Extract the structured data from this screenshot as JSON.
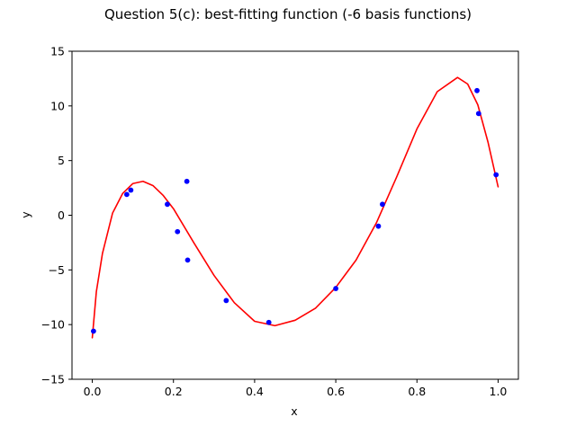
{
  "chart_data": {
    "type": "scatter",
    "title": "Question 5(c): best-fitting function (-6 basis functions)",
    "xlabel": "x",
    "ylabel": "y",
    "xlim": [
      -0.05,
      1.05
    ],
    "ylim": [
      -15,
      15
    ],
    "xticks": [
      "0.0",
      "0.2",
      "0.4",
      "0.6",
      "0.8",
      "1.0"
    ],
    "xtick_values": [
      0.0,
      0.2,
      0.4,
      0.6,
      0.8,
      1.0
    ],
    "yticks": [
      "−15",
      "−10",
      "−5",
      "0",
      "5",
      "10",
      "15"
    ],
    "ytick_values": [
      -15,
      -10,
      -5,
      0,
      5,
      10,
      15
    ],
    "grid": false,
    "legend": "none",
    "points": {
      "color": "#0000ff",
      "x": [
        0.003,
        0.085,
        0.095,
        0.185,
        0.21,
        0.233,
        0.235,
        0.33,
        0.435,
        0.6,
        0.705,
        0.715,
        0.948,
        0.952,
        0.995
      ],
      "y": [
        -10.6,
        1.9,
        2.3,
        1.0,
        -1.5,
        3.1,
        -4.1,
        -7.8,
        -9.8,
        -6.7,
        -1.0,
        1.0,
        11.4,
        9.3,
        3.7
      ]
    },
    "curve": {
      "color": "#ff0000",
      "x": [
        0.0,
        0.01,
        0.025,
        0.05,
        0.075,
        0.1,
        0.125,
        0.15,
        0.175,
        0.2,
        0.25,
        0.3,
        0.35,
        0.4,
        0.45,
        0.5,
        0.55,
        0.6,
        0.65,
        0.7,
        0.75,
        0.8,
        0.85,
        0.9,
        0.925,
        0.95,
        0.975,
        1.0
      ],
      "y": [
        -11.2,
        -7.0,
        -3.5,
        0.2,
        2.0,
        2.9,
        3.1,
        2.7,
        1.8,
        0.6,
        -2.5,
        -5.5,
        -8.0,
        -9.7,
        -10.1,
        -9.6,
        -8.5,
        -6.6,
        -4.1,
        -0.7,
        3.5,
        7.9,
        11.3,
        12.6,
        12.0,
        10.1,
        6.7,
        2.6
      ]
    }
  }
}
